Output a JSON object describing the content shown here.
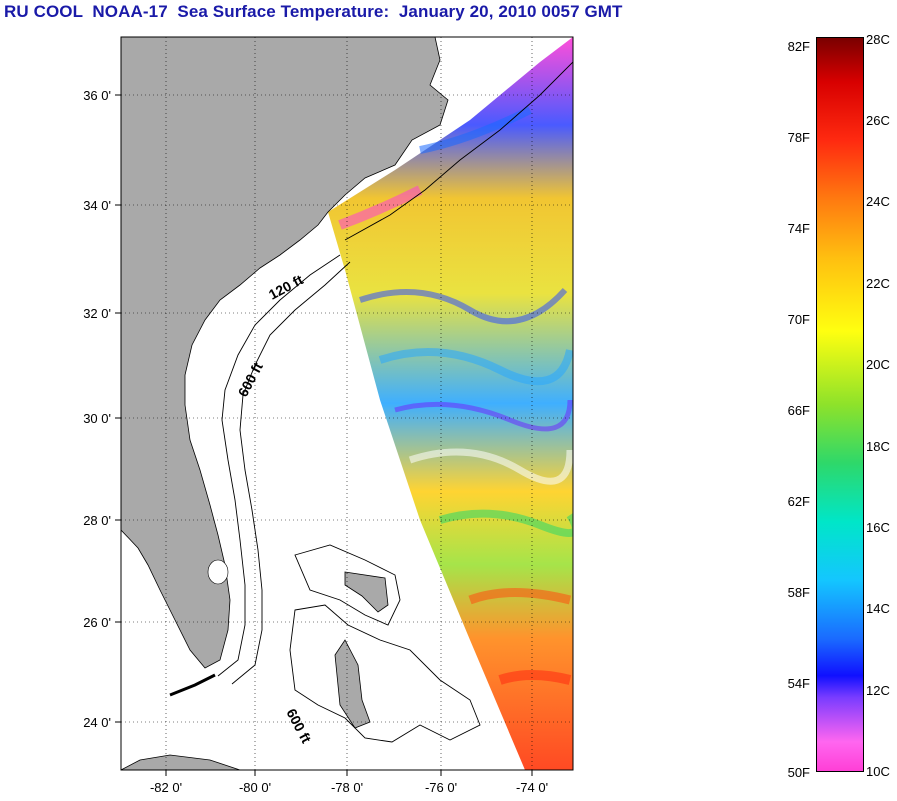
{
  "title": "RU COOL  NOAA-17  Sea Surface Temperature:  January 20, 2010 0057 GMT",
  "map": {
    "lat_labels": [
      "36 0'",
      "34 0'",
      "32 0'",
      "30 0'",
      "28 0'",
      "26 0'",
      "24 0'"
    ],
    "lon_labels": [
      "-82 0'",
      "-80 0'",
      "-78 0'",
      "-76 0'",
      "-74 0'"
    ],
    "depth_labels": [
      "120 ft",
      "600 ft",
      "600 ft"
    ],
    "colors": {
      "land": "#a9a9a9",
      "no_data": "#ffffff"
    }
  },
  "colorbar": {
    "fahrenheit": [
      "82F",
      "78F",
      "74F",
      "70F",
      "66F",
      "62F",
      "58F",
      "54F",
      "50F"
    ],
    "celsius": [
      "28C",
      "26C",
      "24C",
      "22C",
      "20C",
      "18C",
      "16C",
      "14C",
      "12C",
      "10C"
    ]
  }
}
